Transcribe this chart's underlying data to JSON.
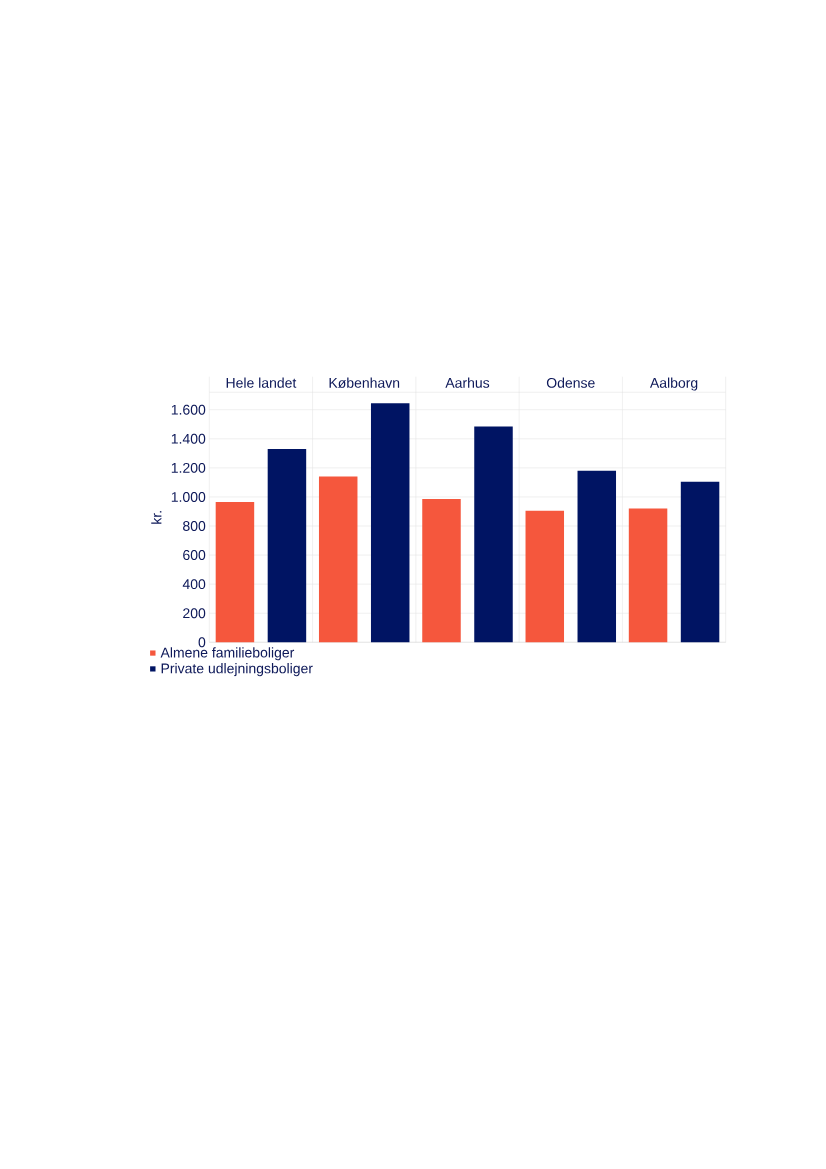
{
  "chart_data": {
    "type": "bar",
    "ylabel": "kr.",
    "categories": [
      "Hele landet",
      "København",
      "Aarhus",
      "Odense",
      "Aalborg"
    ],
    "series": [
      {
        "name": "Almene familieboliger",
        "color": "#f5573d",
        "values": [
          965,
          1140,
          985,
          905,
          920
        ]
      },
      {
        "name": "Private udlejningsboliger",
        "color": "#001463",
        "values": [
          1330,
          1645,
          1485,
          1180,
          1105
        ]
      }
    ],
    "ylim": [
      0,
      1720
    ],
    "yticks": [
      0,
      200,
      400,
      600,
      800,
      {
        "value": 1000,
        "label": "1.000"
      },
      {
        "value": 1200,
        "label": "1.200"
      },
      {
        "value": 1400,
        "label": "1.400"
      },
      {
        "value": 1600,
        "label": "1.600"
      }
    ],
    "grid": "y",
    "legend": "bottom left"
  }
}
